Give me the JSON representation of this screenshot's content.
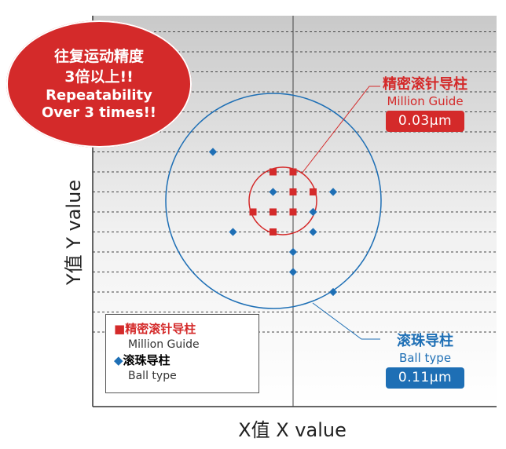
{
  "badge": {
    "line1": "往复运动精度",
    "line2": "3倍以上!!",
    "line3": "Repeatability",
    "line4": "Over 3 times!!"
  },
  "callouts": {
    "million": {
      "zh": "精密滚针导柱",
      "en": "Million Guide",
      "value": "0.03μm",
      "color": "#d42a2a"
    },
    "ball": {
      "zh": "滚珠导柱",
      "en": "Ball type",
      "value": "0.11μm",
      "color": "#1e6fb5"
    }
  },
  "legend": {
    "million_zh": "精密滚针导柱",
    "million_en": "Million Guide",
    "ball_zh": "滚珠导柱",
    "ball_en": "Ball type"
  },
  "chart_data": {
    "type": "scatter",
    "xlabel": "X值  X value",
    "ylabel": "Y值  Y value",
    "grid": true,
    "series": [
      {
        "name": "精密滚针导柱 Million Guide",
        "marker": "square",
        "color": "#d42a2a",
        "points": [
          [
            -1,
            2
          ],
          [
            0,
            2
          ],
          [
            0,
            1
          ],
          [
            1,
            1
          ],
          [
            -2,
            0
          ],
          [
            -1,
            0
          ],
          [
            0,
            0
          ],
          [
            -1,
            -1
          ]
        ]
      },
      {
        "name": "滚珠导柱 Ball type",
        "marker": "diamond",
        "color": "#1e6fb5",
        "points": [
          [
            -4,
            3
          ],
          [
            -1,
            1
          ],
          [
            2,
            1
          ],
          [
            1,
            0
          ],
          [
            -3,
            -1
          ],
          [
            1,
            -1
          ],
          [
            0,
            -2
          ],
          [
            0,
            -3
          ],
          [
            2,
            -4
          ]
        ]
      }
    ]
  }
}
